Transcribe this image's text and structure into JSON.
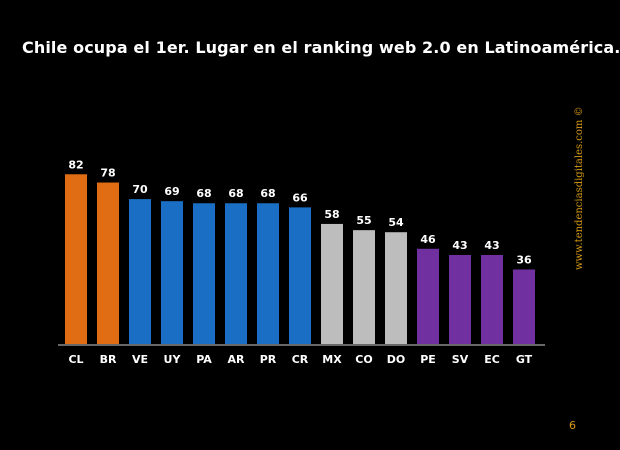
{
  "title": "Chile ocupa el 1er. Lugar en el ranking web 2.0 en Latinoamérica.",
  "watermark": "www.tendenciasdigitales.com ©",
  "page_number": "6",
  "chart_data": {
    "type": "bar",
    "title": "Chile ocupa el 1er. Lugar en el ranking web 2.0 en Latinoamérica.",
    "xlabel": "",
    "ylabel": "",
    "ylim": [
      0,
      85
    ],
    "grid": false,
    "categories": [
      "CL",
      "BR",
      "VE",
      "UY",
      "PA",
      "AR",
      "PR",
      "CR",
      "MX",
      "CO",
      "DO",
      "PE",
      "SV",
      "EC",
      "GT"
    ],
    "values": [
      82,
      78,
      70,
      69,
      68,
      68,
      68,
      66,
      58,
      55,
      54,
      46,
      43,
      43,
      36
    ],
    "bar_colors": [
      "#e06c14",
      "#e06c14",
      "#1a6fc4",
      "#1a6fc4",
      "#1a6fc4",
      "#1a6fc4",
      "#1a6fc4",
      "#1a6fc4",
      "#bdbdbd",
      "#bdbdbd",
      "#bdbdbd",
      "#7030a0",
      "#7030a0",
      "#7030a0",
      "#7030a0"
    ],
    "label_color": "#ffffff",
    "baseline_color": "#8a8a8a"
  }
}
